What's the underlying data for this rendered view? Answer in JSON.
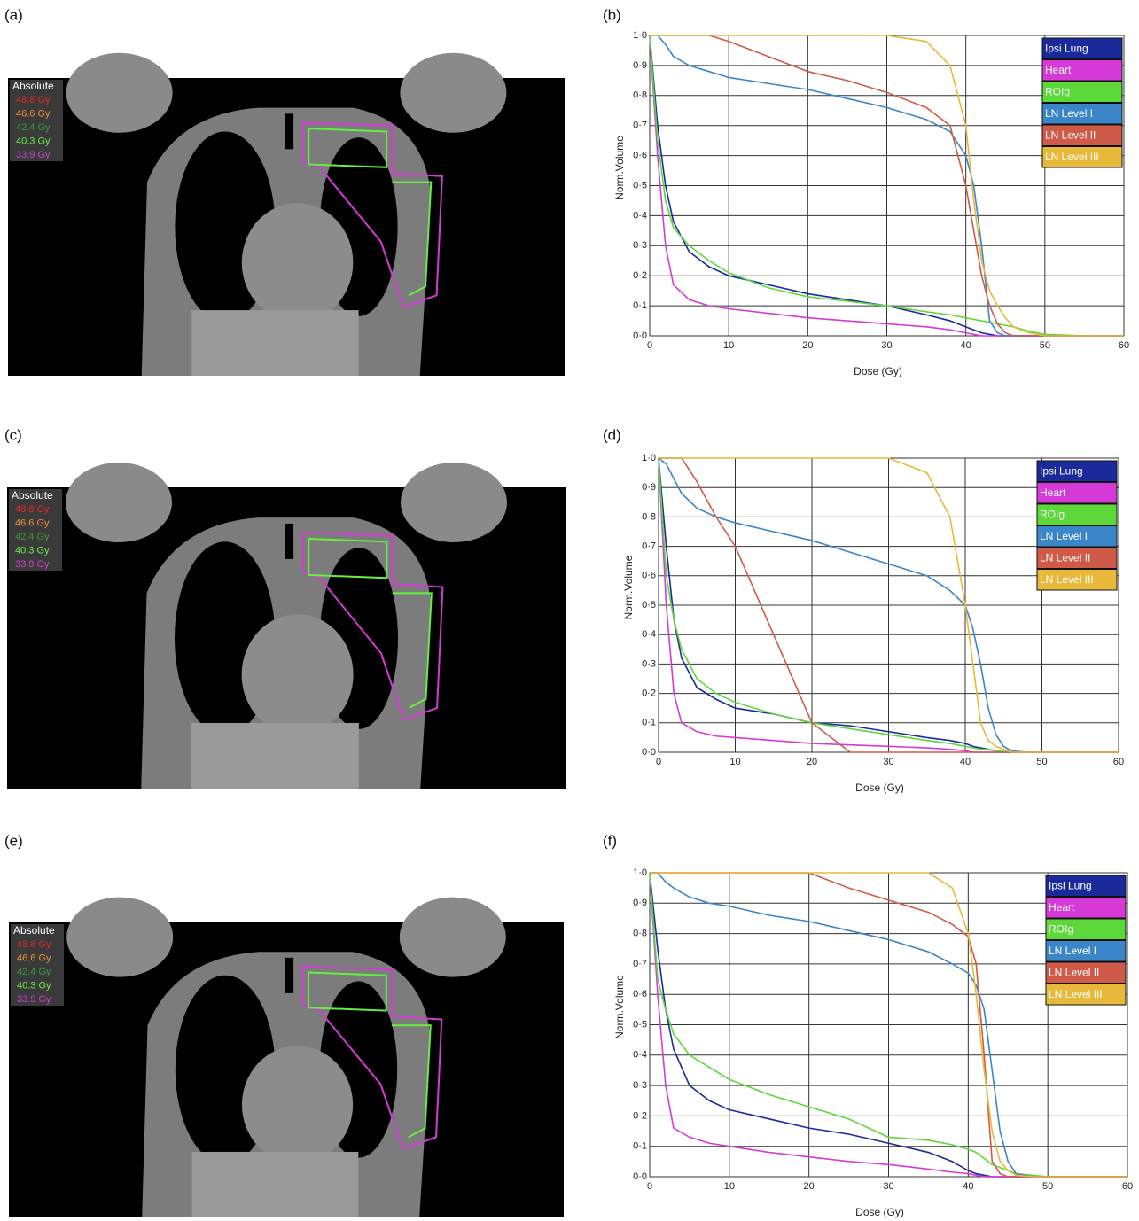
{
  "panels": [
    {
      "label": "(a)",
      "legend": {
        "title": "Absolute",
        "items": [
          {
            "text": "48.8 Gy",
            "color": "#e02828"
          },
          {
            "text": "46.6 Gy",
            "color": "#f09030"
          },
          {
            "text": "42.4 Gy",
            "color": "#3a9a3a"
          },
          {
            "text": "40.3 Gy",
            "color": "#66ee44"
          },
          {
            "text": "33.9 Gy",
            "color": "#d040d0"
          }
        ]
      }
    },
    {
      "label": "(c)",
      "legend": {
        "title": "Absolute",
        "items": [
          {
            "text": "48.8 Gy",
            "color": "#e02828"
          },
          {
            "text": "46.6 Gy",
            "color": "#f09030"
          },
          {
            "text": "42.4 Gy",
            "color": "#3a9a3a"
          },
          {
            "text": "40.3 Gy",
            "color": "#66ee44"
          },
          {
            "text": "33.9 Gy",
            "color": "#d040d0"
          }
        ]
      }
    },
    {
      "label": "(e)",
      "legend": {
        "title": "Absolute",
        "items": [
          {
            "text": "48.8 Gy",
            "color": "#e02828"
          },
          {
            "text": "46.6 Gy",
            "color": "#f09030"
          },
          {
            "text": "42.4 Gy",
            "color": "#3a9a3a"
          },
          {
            "text": "40.3 Gy",
            "color": "#66ee44"
          },
          {
            "text": "33.9 Gy",
            "color": "#d040d0"
          }
        ]
      }
    }
  ],
  "chart_data": [
    {
      "type": "line",
      "label": "(b)",
      "xlabel": "Dose (Gy)",
      "ylabel": "Norm.Volume",
      "grid": true,
      "xlim": [
        0,
        60
      ],
      "xticks": [
        0,
        10,
        20,
        30,
        40,
        50,
        60
      ],
      "ylim": [
        0,
        1
      ],
      "yticks": [
        {
          "value": 0,
          "label": "0·0"
        },
        {
          "value": 0.1,
          "label": "0·1"
        },
        {
          "value": 0.2,
          "label": "0·2"
        },
        {
          "value": 0.3,
          "label": "0·3"
        },
        {
          "value": 0.4,
          "label": "0·4"
        },
        {
          "value": 0.5,
          "label": "0·5"
        },
        {
          "value": 0.6,
          "label": "0·6"
        },
        {
          "value": 0.7,
          "label": "0·7"
        },
        {
          "value": 0.8,
          "label": "0·8"
        },
        {
          "value": 0.9,
          "label": "0·9"
        },
        {
          "value": 1,
          "label": "1·0"
        }
      ],
      "x": [
        0,
        1,
        2,
        3,
        5,
        7.5,
        10,
        15,
        20,
        25,
        30,
        35,
        38,
        40,
        41,
        42,
        43,
        44,
        45,
        46,
        48,
        50,
        55,
        60
      ],
      "series": [
        {
          "name": "Ipsi Lung",
          "color": "#1a2a9a",
          "values": [
            1,
            0.7,
            0.5,
            0.38,
            0.28,
            0.23,
            0.2,
            0.17,
            0.14,
            0.12,
            0.1,
            0.07,
            0.05,
            0.03,
            0.02,
            0.01,
            0.005,
            0,
            0,
            0,
            0,
            0,
            0,
            0
          ]
        },
        {
          "name": "Heart",
          "color": "#d63ad6",
          "values": [
            1,
            0.6,
            0.3,
            0.17,
            0.12,
            0.1,
            0.09,
            0.075,
            0.06,
            0.05,
            0.04,
            0.03,
            0.02,
            0.01,
            0.005,
            0,
            0,
            0,
            0,
            0,
            0,
            0,
            0,
            0
          ]
        },
        {
          "name": "ROIg",
          "color": "#5cd83a",
          "values": [
            1,
            0.65,
            0.45,
            0.36,
            0.3,
            0.25,
            0.21,
            0.16,
            0.13,
            0.115,
            0.1,
            0.08,
            0.07,
            0.06,
            0.055,
            0.05,
            0.045,
            0.04,
            0.035,
            0.03,
            0.015,
            0.005,
            0,
            0
          ]
        },
        {
          "name": "LN Level I",
          "color": "#3a86c8",
          "values": [
            1,
            1,
            0.97,
            0.93,
            0.9,
            0.88,
            0.86,
            0.84,
            0.82,
            0.79,
            0.76,
            0.72,
            0.68,
            0.6,
            0.5,
            0.3,
            0.05,
            0.01,
            0,
            0,
            0,
            0,
            0,
            0
          ]
        },
        {
          "name": "LN Level II",
          "color": "#d05a48",
          "values": [
            1,
            1,
            1,
            1,
            1,
            1,
            0.98,
            0.93,
            0.88,
            0.85,
            0.81,
            0.76,
            0.7,
            0.5,
            0.35,
            0.2,
            0.1,
            0.04,
            0.01,
            0,
            0,
            0,
            0,
            0
          ]
        },
        {
          "name": "LN Level III",
          "color": "#e8b83a",
          "values": [
            1,
            1,
            1,
            1,
            1,
            1,
            1,
            1,
            1,
            1,
            1,
            0.98,
            0.9,
            0.7,
            0.45,
            0.25,
            0.15,
            0.1,
            0.06,
            0.03,
            0.01,
            0,
            0,
            0
          ]
        }
      ]
    },
    {
      "type": "line",
      "label": "(d)",
      "xlabel": "Dose (Gy)",
      "ylabel": "Norm.Volume",
      "grid": true,
      "xlim": [
        0,
        60
      ],
      "xticks": [
        0,
        10,
        20,
        30,
        40,
        50,
        60
      ],
      "ylim": [
        0,
        1
      ],
      "yticks": [
        {
          "value": 0,
          "label": "0·0"
        },
        {
          "value": 0.1,
          "label": "0·1"
        },
        {
          "value": 0.2,
          "label": "0·2"
        },
        {
          "value": 0.3,
          "label": "0·3"
        },
        {
          "value": 0.4,
          "label": "0·4"
        },
        {
          "value": 0.5,
          "label": "0·5"
        },
        {
          "value": 0.6,
          "label": "0·6"
        },
        {
          "value": 0.7,
          "label": "0·7"
        },
        {
          "value": 0.8,
          "label": "0·8"
        },
        {
          "value": 0.9,
          "label": "0·9"
        },
        {
          "value": 1,
          "label": "1·0"
        }
      ],
      "x": [
        0,
        1,
        2,
        3,
        5,
        7.5,
        10,
        15,
        20,
        25,
        30,
        35,
        38,
        40,
        41,
        42,
        43,
        44,
        45,
        46,
        48,
        50,
        55,
        60
      ],
      "series": [
        {
          "name": "Ipsi Lung",
          "color": "#1a2a9a",
          "values": [
            1,
            0.7,
            0.45,
            0.32,
            0.22,
            0.18,
            0.15,
            0.13,
            0.1,
            0.09,
            0.07,
            0.05,
            0.04,
            0.03,
            0.02,
            0.015,
            0.01,
            0.005,
            0,
            0,
            0,
            0,
            0,
            0
          ]
        },
        {
          "name": "Heart",
          "color": "#d63ad6",
          "values": [
            1,
            0.5,
            0.2,
            0.1,
            0.07,
            0.055,
            0.05,
            0.04,
            0.03,
            0.025,
            0.02,
            0.015,
            0.01,
            0.005,
            0,
            0,
            0,
            0,
            0,
            0,
            0,
            0,
            0,
            0
          ]
        },
        {
          "name": "ROIg",
          "color": "#5cd83a",
          "values": [
            1,
            0.6,
            0.45,
            0.35,
            0.25,
            0.2,
            0.17,
            0.13,
            0.1,
            0.08,
            0.06,
            0.04,
            0.03,
            0.02,
            0.015,
            0.01,
            0.01,
            0.005,
            0.003,
            0.001,
            0,
            0,
            0,
            0
          ]
        },
        {
          "name": "LN Level I",
          "color": "#3a86c8",
          "values": [
            1,
            0.98,
            0.93,
            0.88,
            0.83,
            0.8,
            0.78,
            0.75,
            0.72,
            0.68,
            0.64,
            0.6,
            0.55,
            0.5,
            0.42,
            0.3,
            0.15,
            0.06,
            0.02,
            0.005,
            0,
            0,
            0,
            0
          ]
        },
        {
          "name": "LN Level II",
          "color": "#d05a48",
          "values": [
            1,
            1,
            1,
            1,
            0.92,
            0.8,
            0.7,
            0.4,
            0.1,
            0,
            0,
            0,
            0,
            0,
            0,
            0,
            0,
            0,
            0,
            0,
            0,
            0,
            0,
            0
          ]
        },
        {
          "name": "LN Level III",
          "color": "#e8b83a",
          "values": [
            1,
            1,
            1,
            1,
            1,
            1,
            1,
            1,
            1,
            1,
            1,
            0.95,
            0.8,
            0.5,
            0.3,
            0.1,
            0.04,
            0.02,
            0.01,
            0,
            0,
            0,
            0,
            0
          ]
        }
      ]
    },
    {
      "type": "line",
      "label": "(f)",
      "xlabel": "Dose (Gy)",
      "ylabel": "Norm.Volume",
      "grid": true,
      "xlim": [
        0,
        60
      ],
      "xticks": [
        0,
        10,
        20,
        30,
        40,
        50,
        60
      ],
      "ylim": [
        0,
        1
      ],
      "yticks": [
        {
          "value": 0,
          "label": "0·0"
        },
        {
          "value": 0.1,
          "label": "0·1"
        },
        {
          "value": 0.2,
          "label": "0·2"
        },
        {
          "value": 0.3,
          "label": "0·3"
        },
        {
          "value": 0.4,
          "label": "0·4"
        },
        {
          "value": 0.5,
          "label": "0·5"
        },
        {
          "value": 0.6,
          "label": "0·6"
        },
        {
          "value": 0.7,
          "label": "0·7"
        },
        {
          "value": 0.8,
          "label": "0·8"
        },
        {
          "value": 0.9,
          "label": "0·9"
        },
        {
          "value": 1,
          "label": "1·0"
        }
      ],
      "x": [
        0,
        1,
        2,
        3,
        5,
        7.5,
        10,
        15,
        20,
        25,
        30,
        35,
        38,
        40,
        41,
        42,
        43,
        44,
        45,
        46,
        48,
        50,
        55,
        60
      ],
      "series": [
        {
          "name": "Ipsi Lung",
          "color": "#1a2a9a",
          "values": [
            1,
            0.75,
            0.55,
            0.42,
            0.3,
            0.25,
            0.22,
            0.19,
            0.16,
            0.14,
            0.11,
            0.08,
            0.05,
            0.02,
            0.01,
            0.005,
            0,
            0,
            0,
            0,
            0,
            0,
            0,
            0
          ]
        },
        {
          "name": "Heart",
          "color": "#d63ad6",
          "values": [
            1,
            0.6,
            0.3,
            0.16,
            0.13,
            0.11,
            0.1,
            0.08,
            0.065,
            0.05,
            0.04,
            0.025,
            0.015,
            0.01,
            0.005,
            0,
            0,
            0,
            0,
            0,
            0,
            0,
            0,
            0
          ]
        },
        {
          "name": "ROIg",
          "color": "#5cd83a",
          "values": [
            1,
            0.65,
            0.55,
            0.47,
            0.4,
            0.36,
            0.32,
            0.27,
            0.23,
            0.19,
            0.13,
            0.12,
            0.105,
            0.09,
            0.08,
            0.06,
            0.04,
            0.03,
            0.02,
            0.01,
            0.005,
            0,
            0,
            0
          ]
        },
        {
          "name": "LN Level I",
          "color": "#3a86c8",
          "values": [
            1,
            1,
            0.97,
            0.95,
            0.92,
            0.9,
            0.89,
            0.86,
            0.84,
            0.81,
            0.78,
            0.74,
            0.7,
            0.67,
            0.63,
            0.55,
            0.35,
            0.15,
            0.05,
            0.01,
            0,
            0,
            0,
            0
          ]
        },
        {
          "name": "LN Level II",
          "color": "#d05a48",
          "values": [
            1,
            1,
            1,
            1,
            1,
            1,
            1,
            1,
            1,
            0.95,
            0.91,
            0.87,
            0.83,
            0.79,
            0.7,
            0.4,
            0.05,
            0.01,
            0,
            0,
            0,
            0,
            0,
            0
          ]
        },
        {
          "name": "LN Level III",
          "color": "#e8b83a",
          "values": [
            1,
            1,
            1,
            1,
            1,
            1,
            1,
            1,
            1,
            1,
            1,
            1,
            0.95,
            0.8,
            0.6,
            0.35,
            0.15,
            0.05,
            0.02,
            0.005,
            0,
            0,
            0,
            0
          ]
        }
      ]
    }
  ]
}
